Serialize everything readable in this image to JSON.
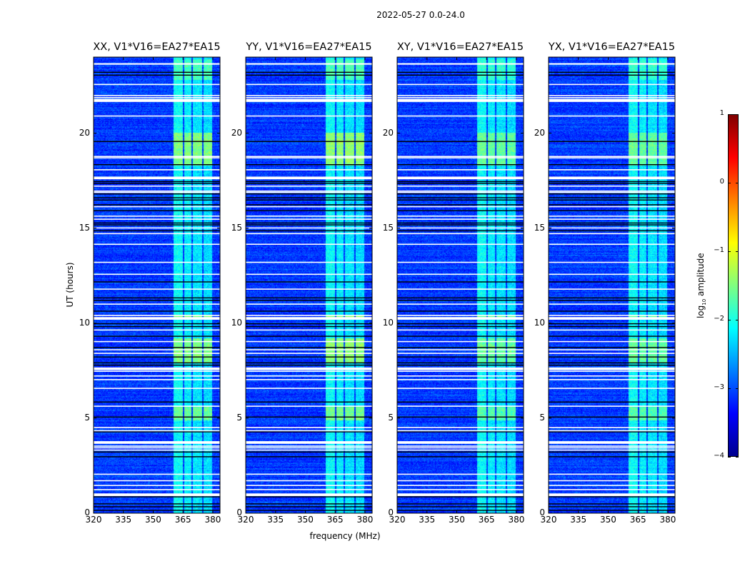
{
  "chart_data": {
    "type": "heatmap",
    "title": "2022-05-27 0.0-24.0",
    "xlabel": "frequency (MHz)",
    "ylabel": "UT (hours)",
    "xlim": [
      320,
      383.6
    ],
    "ylim": [
      0,
      24
    ],
    "xticks": [
      320,
      335,
      350,
      365,
      380
    ],
    "yticks": [
      0,
      5,
      10,
      15,
      20
    ],
    "panels": [
      {
        "title": "XX, V1*V16=EA27*EA15",
        "bright_boost": 1.0
      },
      {
        "title": "YY, V1*V16=EA27*EA15",
        "bright_boost": 1.1
      },
      {
        "title": "XY, V1*V16=EA27*EA15",
        "bright_boost": 0.8
      },
      {
        "title": "YX, V1*V16=EA27*EA15",
        "bright_boost": 0.8
      }
    ],
    "colorbar": {
      "label_main": "log",
      "label_sub": "10",
      "label_rest": " amplitude",
      "range": [
        -4,
        1
      ],
      "ticks": [
        1,
        0,
        -1,
        -2,
        -3,
        -4
      ],
      "colormap": "jet"
    },
    "background_level": -3.1,
    "rfi_bands": [
      {
        "range": [
          360.3,
          364.8
        ],
        "level": -2.1
      },
      {
        "range": [
          365.6,
          369.3
        ],
        "level": -2.2
      },
      {
        "range": [
          370.0,
          374.6
        ],
        "level": -2.25
      },
      {
        "range": [
          375.4,
          379.6
        ],
        "level": -2.3
      }
    ],
    "bright_periods": [
      {
        "range": [
          18.3,
          20.0
        ],
        "level": -1.5
      },
      {
        "range": [
          7.9,
          9.2
        ],
        "level": -1.5
      },
      {
        "range": [
          4.9,
          5.6
        ],
        "level": -1.6
      },
      {
        "range": [
          10.2,
          10.4
        ],
        "level": -1.5
      },
      {
        "range": [
          22.8,
          23.9
        ],
        "level": -1.8
      }
    ],
    "flagged_ranges": [
      [
        23.6,
        23.68
      ],
      [
        22.53,
        22.59
      ],
      [
        21.95,
        22.01
      ],
      [
        21.84,
        21.9
      ],
      [
        21.64,
        21.8
      ],
      [
        20.87,
        20.93
      ],
      [
        18.74,
        18.8
      ],
      [
        18.67,
        18.73
      ],
      [
        18.04,
        18.1
      ],
      [
        17.57,
        17.71
      ],
      [
        17.18,
        17.24
      ],
      [
        16.92,
        16.98
      ],
      [
        16.85,
        16.91
      ],
      [
        16.1,
        16.16
      ],
      [
        15.6,
        15.66
      ],
      [
        15.44,
        15.5
      ],
      [
        14.98,
        15.04
      ],
      [
        14.68,
        14.74
      ],
      [
        14.12,
        14.18
      ],
      [
        13.17,
        13.23
      ],
      [
        12.54,
        12.6
      ],
      [
        11.76,
        11.82
      ],
      [
        10.97,
        11.03
      ],
      [
        10.38,
        10.44
      ],
      [
        10.18,
        10.32
      ],
      [
        9.61,
        9.67
      ],
      [
        9.0,
        9.06
      ],
      [
        8.57,
        8.63
      ],
      [
        8.38,
        8.44
      ],
      [
        7.53,
        7.67
      ],
      [
        7.44,
        7.5
      ],
      [
        7.19,
        7.25
      ],
      [
        7.0,
        7.06
      ],
      [
        6.54,
        6.6
      ],
      [
        5.6,
        5.66
      ],
      [
        4.48,
        4.54
      ],
      [
        4.31,
        4.37
      ],
      [
        3.65,
        3.79
      ],
      [
        3.5,
        3.56
      ],
      [
        3.41,
        3.47
      ],
      [
        3.29,
        3.35
      ],
      [
        2.02,
        2.08
      ],
      [
        1.68,
        1.74
      ],
      [
        1.43,
        1.49
      ],
      [
        1.21,
        1.27
      ],
      [
        0.9,
        1.04
      ]
    ],
    "dark_times": [
      23.2,
      23.05,
      19.56,
      18.34,
      17.45,
      17.36,
      16.8,
      16.6,
      16.48,
      16.23,
      15.92,
      15.27,
      15.17,
      14.86,
      12.17,
      11.33,
      11.2,
      10.63,
      9.97,
      9.82,
      9.31,
      8.72,
      8.22,
      7.91,
      7.79,
      5.85,
      5.06,
      4.28,
      3.22,
      2.97,
      0.86,
      0.49,
      0.34,
      0.15
    ]
  }
}
